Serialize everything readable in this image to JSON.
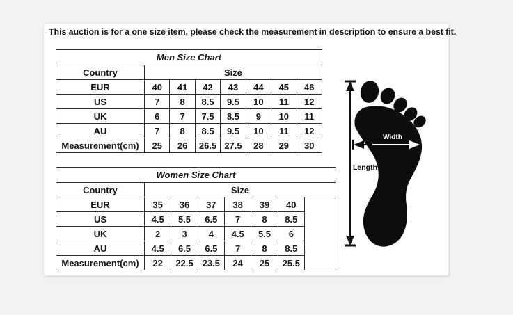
{
  "banner": {
    "text": "This auction is for a one size item, please check the measurement in description to ensure a best fit."
  },
  "men_chart": {
    "title": "Men Size Chart",
    "country_header": "Country",
    "size_header": "Size",
    "rows": [
      {
        "label": "EUR",
        "values": [
          "40",
          "41",
          "42",
          "43",
          "44",
          "45",
          "46"
        ]
      },
      {
        "label": "US",
        "values": [
          "7",
          "8",
          "8.5",
          "9.5",
          "10",
          "11",
          "12"
        ]
      },
      {
        "label": "UK",
        "values": [
          "6",
          "7",
          "7.5",
          "8.5",
          "9",
          "10",
          "11"
        ]
      },
      {
        "label": "AU",
        "values": [
          "7",
          "8",
          "8.5",
          "9.5",
          "10",
          "11",
          "12"
        ]
      },
      {
        "label": "Measurement(cm)",
        "values": [
          "25",
          "26",
          "26.5",
          "27.5",
          "28",
          "29",
          "30"
        ]
      }
    ]
  },
  "women_chart": {
    "title": "Women Size Chart",
    "country_header": "Country",
    "size_header": "Size",
    "rows": [
      {
        "label": "EUR",
        "values": [
          "35",
          "36",
          "37",
          "38",
          "39",
          "40"
        ]
      },
      {
        "label": "US",
        "values": [
          "4.5",
          "5.5",
          "6.5",
          "7",
          "8",
          "8.5"
        ]
      },
      {
        "label": "UK",
        "values": [
          "2",
          "3",
          "4",
          "4.5",
          "5.5",
          "6"
        ]
      },
      {
        "label": "AU",
        "values": [
          "4.5",
          "6.5",
          "6.5",
          "7",
          "8",
          "8.5"
        ]
      },
      {
        "label": "Measurement(cm)",
        "values": [
          "22",
          "22.5",
          "23.5",
          "24",
          "25",
          "25.5"
        ]
      }
    ]
  },
  "foot_diagram": {
    "width_label": "Width",
    "length_label": "Length"
  },
  "colors": {
    "background": "#f2f2f0",
    "panel": "#ffffff",
    "table_border": "#2e2e2e",
    "title_gray": "#8e8e8e",
    "footprint": "#0d0d0d"
  }
}
